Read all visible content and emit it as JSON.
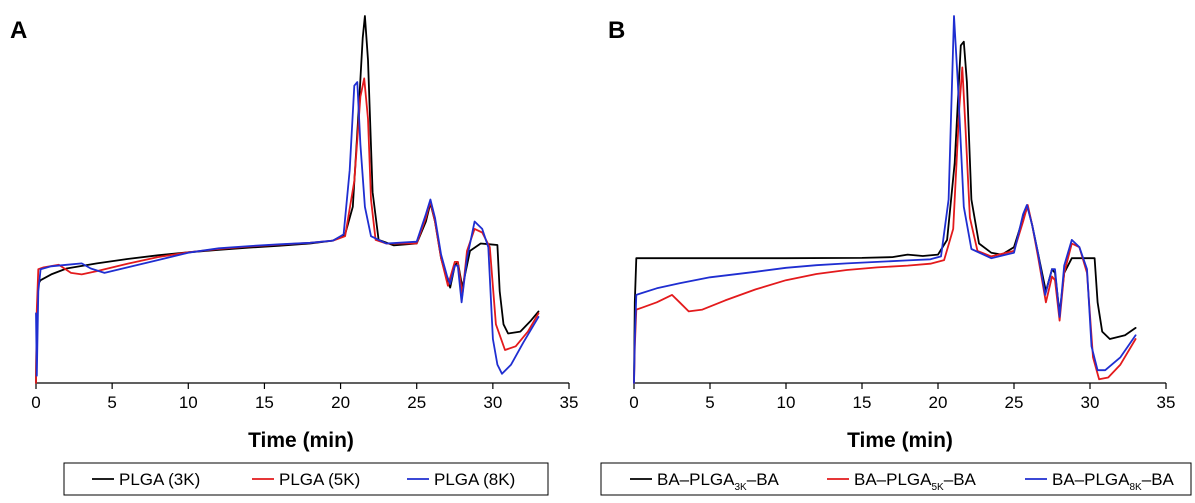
{
  "chart_data": [
    {
      "type": "line",
      "panel_label": "A",
      "xlabel": "Time (min)",
      "ylabel": "",
      "xlim": [
        0,
        35
      ],
      "ylim": [
        0,
        100
      ],
      "x_ticks": [
        "0",
        "5",
        "10",
        "15",
        "20",
        "25",
        "30",
        "35"
      ],
      "grid": false,
      "legend_position": "bottom",
      "series": [
        {
          "name": "PLGA (3K)",
          "color": "#000000",
          "points": [
            [
              0,
              0
            ],
            [
              0.05,
              18
            ],
            [
              0.15,
              27
            ],
            [
              0.3,
              28
            ],
            [
              1,
              29.6
            ],
            [
              2,
              31.2
            ],
            [
              4,
              32.6
            ],
            [
              6,
              33.8
            ],
            [
              8,
              34.8
            ],
            [
              10,
              35.6
            ],
            [
              12,
              36.3
            ],
            [
              14,
              36.9
            ],
            [
              16,
              37.4
            ],
            [
              18,
              38
            ],
            [
              19.5,
              38.8
            ],
            [
              20.3,
              40.5
            ],
            [
              20.8,
              48
            ],
            [
              21.2,
              75
            ],
            [
              21.45,
              94
            ],
            [
              21.6,
              100
            ],
            [
              21.8,
              88
            ],
            [
              22.1,
              52
            ],
            [
              22.5,
              39
            ],
            [
              23.5,
              37.5
            ],
            [
              25,
              38
            ],
            [
              25.6,
              44
            ],
            [
              25.9,
              49
            ],
            [
              26.2,
              44
            ],
            [
              26.6,
              34
            ],
            [
              27,
              28
            ],
            [
              27.2,
              26
            ],
            [
              27.5,
              32
            ],
            [
              27.7,
              33
            ],
            [
              28,
              26
            ],
            [
              28.2,
              30
            ],
            [
              28.5,
              36
            ],
            [
              29.2,
              38
            ],
            [
              29.8,
              37.8
            ],
            [
              30.3,
              37.6
            ],
            [
              30.45,
              25
            ],
            [
              30.7,
              16
            ],
            [
              31,
              13.5
            ],
            [
              31.8,
              14
            ],
            [
              32.5,
              17
            ],
            [
              33,
              19.5
            ]
          ]
        },
        {
          "name": "PLGA (5K)",
          "color": "#e31a1c",
          "points": [
            [
              0,
              0
            ],
            [
              0.05,
              20
            ],
            [
              0.15,
              31
            ],
            [
              0.5,
              31.5
            ],
            [
              1.5,
              32.2
            ],
            [
              2.3,
              30
            ],
            [
              3,
              29.6
            ],
            [
              4,
              30.5
            ],
            [
              6,
              32.5
            ],
            [
              8,
              34.3
            ],
            [
              10,
              35.6
            ],
            [
              12,
              36.5
            ],
            [
              14,
              37.2
            ],
            [
              16,
              37.7
            ],
            [
              18,
              38.2
            ],
            [
              19.5,
              38.8
            ],
            [
              20.3,
              40
            ],
            [
              20.9,
              55
            ],
            [
              21.3,
              78
            ],
            [
              21.55,
              83
            ],
            [
              21.8,
              72
            ],
            [
              22,
              50
            ],
            [
              22.3,
              39
            ],
            [
              23,
              38
            ],
            [
              25,
              38
            ],
            [
              25.6,
              45
            ],
            [
              25.9,
              49.5
            ],
            [
              26.2,
              44
            ],
            [
              26.6,
              34
            ],
            [
              27.05,
              26.5
            ],
            [
              27.5,
              33
            ],
            [
              27.7,
              33
            ],
            [
              28,
              24
            ],
            [
              28.3,
              36
            ],
            [
              28.8,
              42
            ],
            [
              29.3,
              41
            ],
            [
              29.8,
              37
            ],
            [
              30.2,
              16
            ],
            [
              30.8,
              9
            ],
            [
              31.5,
              10
            ],
            [
              32.3,
              14
            ],
            [
              33,
              19
            ]
          ]
        },
        {
          "name": "PLGA (8K)",
          "color": "#1f2ed1",
          "points": [
            [
              0,
              19
            ],
            [
              0.05,
              2
            ],
            [
              0.15,
              25
            ],
            [
              0.3,
              31
            ],
            [
              1,
              31.8
            ],
            [
              2,
              32.2
            ],
            [
              3,
              32.6
            ],
            [
              3.6,
              31.2
            ],
            [
              4.5,
              30
            ],
            [
              6,
              31.5
            ],
            [
              8,
              33.5
            ],
            [
              10,
              35.5
            ],
            [
              12,
              36.7
            ],
            [
              14,
              37.3
            ],
            [
              16,
              37.8
            ],
            [
              18,
              38.2
            ],
            [
              19.5,
              38.8
            ],
            [
              20.2,
              40.5
            ],
            [
              20.6,
              58
            ],
            [
              20.9,
              81
            ],
            [
              21.1,
              82
            ],
            [
              21.3,
              65
            ],
            [
              21.6,
              48
            ],
            [
              22,
              40
            ],
            [
              23,
              38
            ],
            [
              25,
              38.5
            ],
            [
              25.6,
              46
            ],
            [
              25.9,
              50
            ],
            [
              26.2,
              45
            ],
            [
              26.6,
              35
            ],
            [
              27,
              29
            ],
            [
              27.2,
              27
            ],
            [
              27.5,
              32
            ],
            [
              27.7,
              32
            ],
            [
              27.95,
              22
            ],
            [
              28.3,
              34
            ],
            [
              28.8,
              44
            ],
            [
              29.3,
              42
            ],
            [
              29.7,
              37
            ],
            [
              30,
              12
            ],
            [
              30.3,
              5
            ],
            [
              30.6,
              2.5
            ],
            [
              31.2,
              5
            ],
            [
              32,
              11
            ],
            [
              33,
              18
            ]
          ]
        }
      ]
    },
    {
      "type": "line",
      "panel_label": "B",
      "xlabel": "Time (min)",
      "ylabel": "",
      "xlim": [
        0,
        35
      ],
      "ylim": [
        0,
        100
      ],
      "x_ticks": [
        "0",
        "5",
        "10",
        "15",
        "20",
        "25",
        "30",
        "35"
      ],
      "grid": false,
      "legend_position": "bottom",
      "series": [
        {
          "name_parts": [
            "BA–PLGA",
            "3K",
            "–BA"
          ],
          "color": "#000000",
          "points": [
            [
              0,
              0
            ],
            [
              0.05,
              22
            ],
            [
              0.15,
              34
            ],
            [
              0.4,
              34
            ],
            [
              5,
              34
            ],
            [
              10,
              34
            ],
            [
              15,
              34.1
            ],
            [
              17,
              34.3
            ],
            [
              18,
              35
            ],
            [
              19,
              34.6
            ],
            [
              20,
              35
            ],
            [
              20.6,
              39
            ],
            [
              21.1,
              60
            ],
            [
              21.5,
              92
            ],
            [
              21.7,
              93
            ],
            [
              21.9,
              82
            ],
            [
              22.2,
              50
            ],
            [
              22.7,
              38
            ],
            [
              23.5,
              35.5
            ],
            [
              24.2,
              35
            ],
            [
              25,
              37
            ],
            [
              25.6,
              45
            ],
            [
              25.9,
              48
            ],
            [
              26.2,
              43
            ],
            [
              26.6,
              35
            ],
            [
              27.1,
              25
            ],
            [
              27.5,
              31
            ],
            [
              27.7,
              30
            ],
            [
              28,
              19
            ],
            [
              28.3,
              30
            ],
            [
              28.8,
              34
            ],
            [
              29.3,
              34
            ],
            [
              30.3,
              34
            ],
            [
              30.5,
              22
            ],
            [
              30.8,
              14
            ],
            [
              31.3,
              12
            ],
            [
              32.3,
              13
            ],
            [
              33,
              15
            ]
          ]
        },
        {
          "name_parts": [
            "BA–PLGA",
            "5K",
            "–BA"
          ],
          "color": "#e31a1c",
          "points": [
            [
              0,
              0
            ],
            [
              0.05,
              10
            ],
            [
              0.15,
              20
            ],
            [
              0.5,
              20.5
            ],
            [
              1.5,
              22
            ],
            [
              2.5,
              24
            ],
            [
              3,
              22
            ],
            [
              3.6,
              19.5
            ],
            [
              4.5,
              20
            ],
            [
              6,
              22.5
            ],
            [
              8,
              25.5
            ],
            [
              10,
              28
            ],
            [
              12,
              29.7
            ],
            [
              14,
              30.8
            ],
            [
              16,
              31.5
            ],
            [
              18,
              32
            ],
            [
              19.5,
              32.5
            ],
            [
              20.4,
              33.5
            ],
            [
              21,
              42
            ],
            [
              21.4,
              75
            ],
            [
              21.6,
              86
            ],
            [
              21.8,
              70
            ],
            [
              22.1,
              45
            ],
            [
              22.6,
              36
            ],
            [
              23.5,
              34.5
            ],
            [
              25,
              36
            ],
            [
              25.6,
              44
            ],
            [
              25.9,
              48.5
            ],
            [
              26.2,
              43
            ],
            [
              26.6,
              34
            ],
            [
              27.1,
              22
            ],
            [
              27.5,
              29
            ],
            [
              27.7,
              28
            ],
            [
              28,
              17
            ],
            [
              28.3,
              30
            ],
            [
              28.8,
              38
            ],
            [
              29.3,
              37
            ],
            [
              29.8,
              30
            ],
            [
              30.2,
              7
            ],
            [
              30.6,
              1
            ],
            [
              31.2,
              1.5
            ],
            [
              32,
              5
            ],
            [
              33,
              12
            ]
          ]
        },
        {
          "name_parts": [
            "BA–PLGA",
            "8K",
            "–BA"
          ],
          "color": "#1f2ed1",
          "points": [
            [
              0,
              0
            ],
            [
              0.05,
              12
            ],
            [
              0.15,
              24
            ],
            [
              0.5,
              24.5
            ],
            [
              1.5,
              25.8
            ],
            [
              3,
              27.2
            ],
            [
              5,
              28.8
            ],
            [
              8,
              30.3
            ],
            [
              10,
              31.4
            ],
            [
              12,
              32.1
            ],
            [
              14,
              32.6
            ],
            [
              16,
              33
            ],
            [
              18,
              33.4
            ],
            [
              19.5,
              33.7
            ],
            [
              20.2,
              34.5
            ],
            [
              20.7,
              50
            ],
            [
              21.05,
              100
            ],
            [
              21.3,
              82
            ],
            [
              21.7,
              48
            ],
            [
              22.2,
              36.5
            ],
            [
              23.5,
              34
            ],
            [
              25,
              35.5
            ],
            [
              25.6,
              46
            ],
            [
              25.85,
              48.5
            ],
            [
              26.2,
              43
            ],
            [
              26.6,
              35
            ],
            [
              27.05,
              24
            ],
            [
              27.5,
              31
            ],
            [
              27.7,
              31
            ],
            [
              28,
              18
            ],
            [
              28.3,
              32
            ],
            [
              28.8,
              39
            ],
            [
              29.3,
              37
            ],
            [
              29.8,
              31
            ],
            [
              30.1,
              10
            ],
            [
              30.5,
              3.5
            ],
            [
              31,
              3.5
            ],
            [
              32,
              7
            ],
            [
              33,
              13
            ]
          ]
        }
      ]
    }
  ]
}
